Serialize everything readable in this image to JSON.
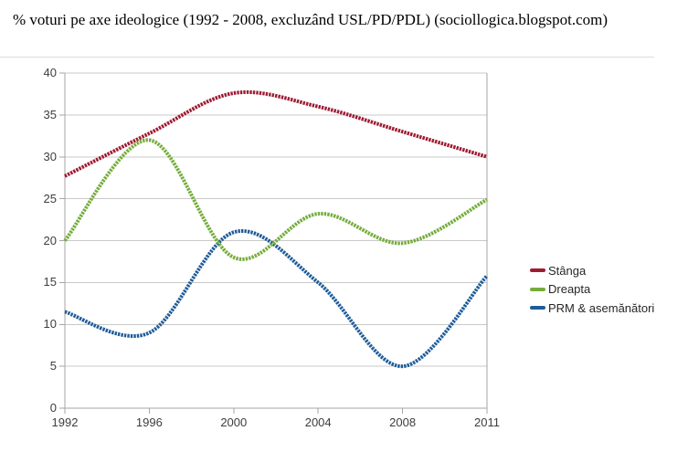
{
  "title": "% voturi pe axe ideologice (1992 - 2008, excluzând USL/PD/PDL) (sociollogica.blogspot.com)",
  "chart_data": {
    "type": "line",
    "line_style": "smooth",
    "x": [
      1992,
      1996,
      2000,
      2004,
      2008,
      2011
    ],
    "x_tick_labels": [
      "1992",
      "1996",
      "2000",
      "2004",
      "2008",
      "2011"
    ],
    "yticks": [
      0,
      5,
      10,
      15,
      20,
      25,
      30,
      35,
      40
    ],
    "y_tick_labels": [
      "0",
      "5",
      "10",
      "15",
      "20",
      "25",
      "30",
      "35",
      "40"
    ],
    "ylim": [
      0,
      40
    ],
    "grid": true,
    "legend_position": "right",
    "series": [
      {
        "name": "Stânga",
        "color": "#9e1b32",
        "values": [
          27.7,
          32.8,
          37.6,
          36.0,
          33.0,
          30.0
        ]
      },
      {
        "name": "Dreapta",
        "color": "#75ad3c",
        "values": [
          20.0,
          32.0,
          18.0,
          23.2,
          19.7,
          24.9
        ]
      },
      {
        "name": "PRM & asemănători",
        "color": "#1f5c99",
        "values": [
          11.5,
          9.0,
          21.0,
          15.0,
          5.0,
          15.8
        ]
      }
    ],
    "title": "% voturi pe axe ideologice (1992 - 2008, excluzând USL/PD/PDL) (sociollogica.blogspot.com)",
    "xlabel": "",
    "ylabel": ""
  },
  "colors": {
    "background": "#ffffff",
    "gridline": "#c9c9c9",
    "axis": "#a6a6a6",
    "title_text": "#000000",
    "label_text": "#3d3d3d"
  }
}
